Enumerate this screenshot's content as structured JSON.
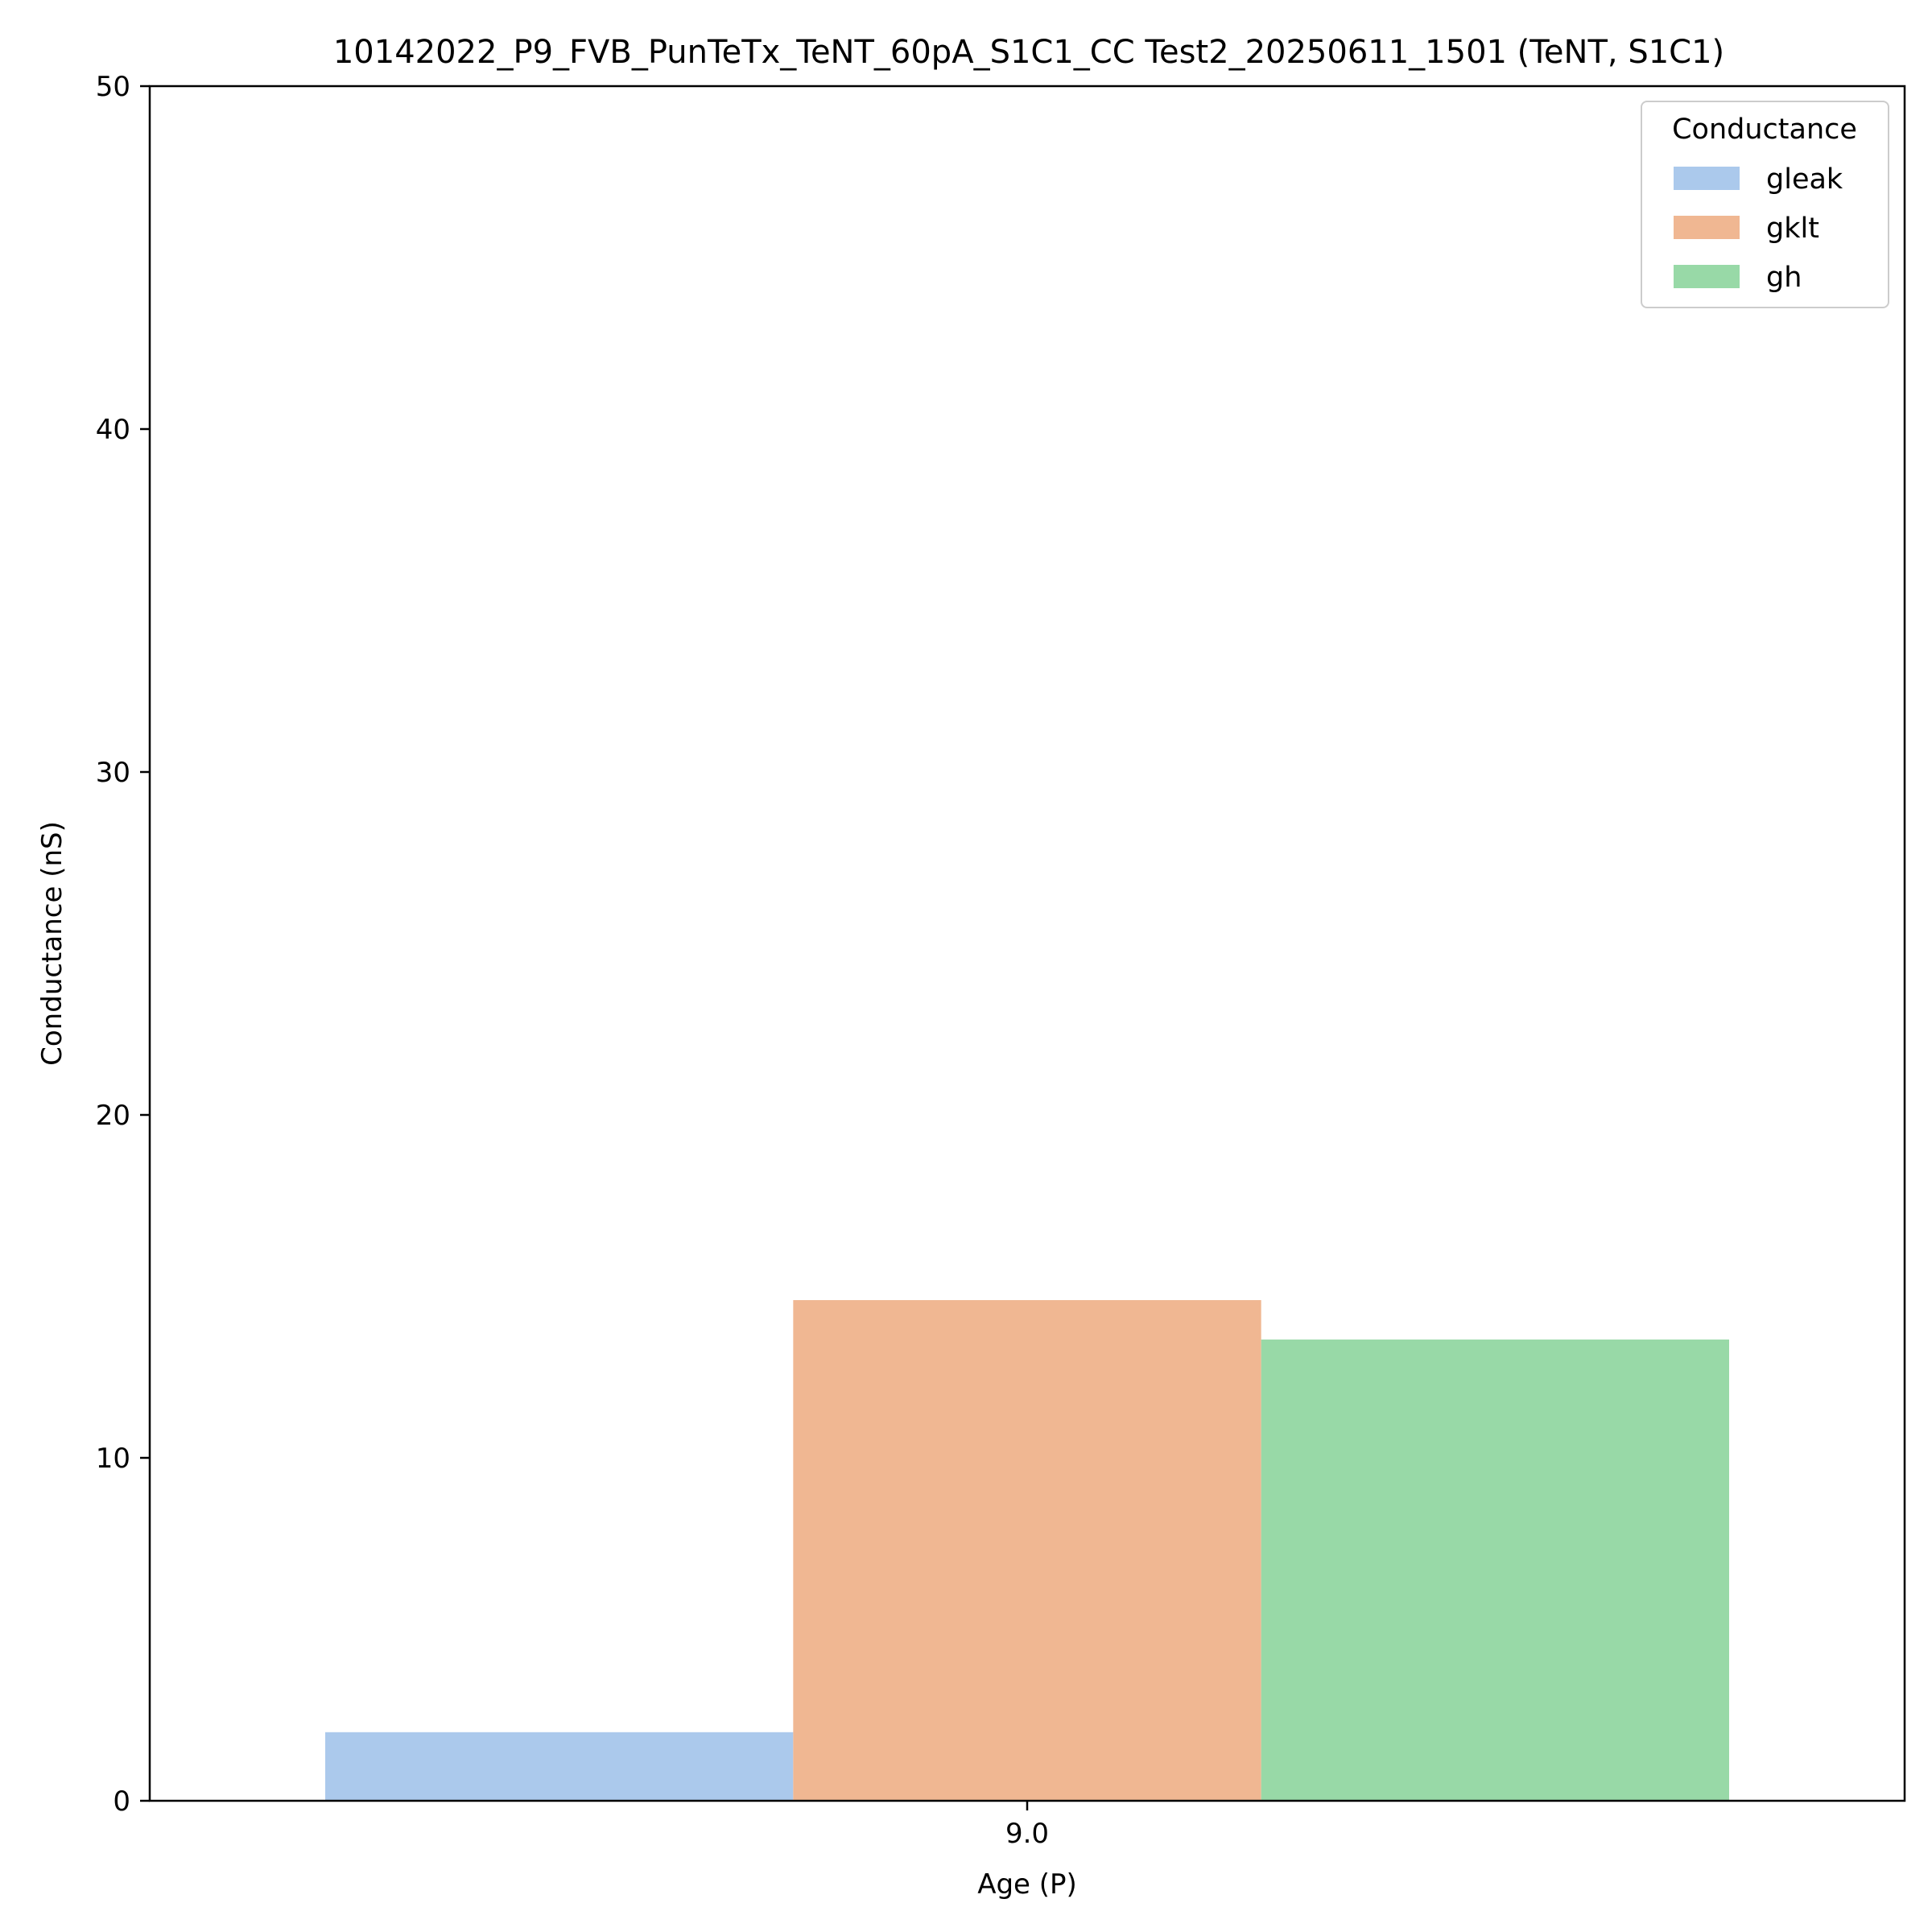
{
  "chart_data": {
    "type": "bar",
    "title": "10142022_P9_FVB_PunTeTx_TeNT_60pA_S1C1_CC Test2_20250611_1501 (TeNT, S1C1)",
    "xlabel": "Age (P)",
    "ylabel": "Conductance (nS)",
    "categories": [
      "9.0"
    ],
    "ylim": [
      0,
      50
    ],
    "yticks": [
      "0",
      "10",
      "20",
      "30",
      "40",
      "50"
    ],
    "grid": false,
    "legend": {
      "title": "Conductance",
      "placement": "top-right"
    },
    "series": [
      {
        "name": "gleak",
        "values": [
          2.0
        ],
        "color": "#abc9ec"
      },
      {
        "name": "gklt",
        "values": [
          14.6
        ],
        "color": "#f0b792"
      },
      {
        "name": "gh",
        "values": [
          13.45
        ],
        "color": "#98d9a7"
      }
    ]
  }
}
